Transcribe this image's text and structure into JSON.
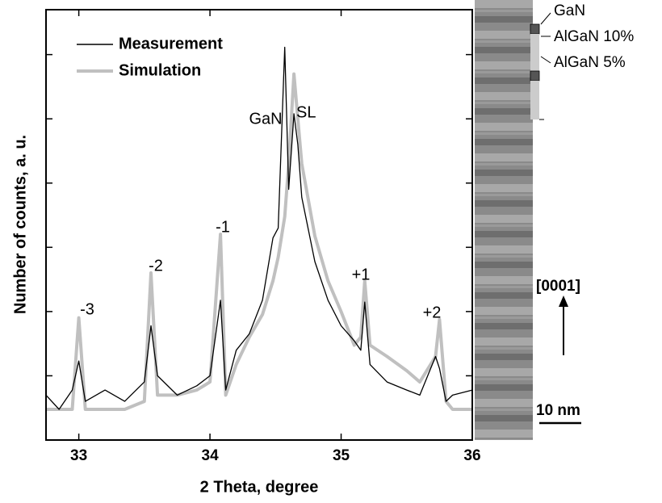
{
  "chart_data": {
    "type": "line",
    "x_label": "2 Theta, degree",
    "y_label": "Number of counts, a. u.",
    "x": [
      32.75,
      32.85,
      32.95,
      33.0,
      33.05,
      33.2,
      33.35,
      33.5,
      33.55,
      33.6,
      33.75,
      33.9,
      34.0,
      34.08,
      34.12,
      34.2,
      34.3,
      34.4,
      34.48,
      34.52,
      34.57,
      34.6,
      34.64,
      34.67,
      34.7,
      34.8,
      34.9,
      35.0,
      35.1,
      35.15,
      35.18,
      35.22,
      35.35,
      35.5,
      35.6,
      35.72,
      35.75,
      35.8,
      35.85,
      36.0
    ],
    "series": [
      {
        "name": "Simulation",
        "color": "#c0c0c0",
        "values": [
          3,
          3,
          3,
          80,
          3,
          3,
          3,
          4,
          400,
          5,
          5,
          6,
          8,
          1600,
          5,
          15,
          40,
          90,
          300,
          700,
          3000,
          20000,
          500000,
          100000,
          20000,
          1500,
          300,
          100,
          30,
          40,
          300,
          30,
          20,
          12,
          8,
          20,
          75,
          4,
          3,
          3
        ]
      },
      {
        "name": "Measurement",
        "color": "#000000",
        "values": [
          5,
          3,
          6,
          17,
          4,
          6,
          4,
          8,
          60,
          10,
          5,
          7,
          10,
          150,
          6,
          25,
          45,
          150,
          1400,
          2000,
          1300000,
          8000,
          120000,
          40000,
          6000,
          600,
          150,
          60,
          35,
          25,
          140,
          15,
          8,
          6,
          5,
          20,
          13,
          4,
          5,
          6
        ]
      }
    ],
    "xlim": [
      32.75,
      36
    ],
    "xticks": [
      33,
      34,
      35,
      36
    ],
    "ylim": [
      1,
      5000000
    ],
    "yticks": [
      10,
      100,
      1000,
      10000,
      100000,
      1000000
    ],
    "log_y": true,
    "annotations": [
      "GaN",
      "SL",
      "-3",
      "-2",
      "-1",
      "+1",
      "+2"
    ]
  },
  "tem_image": {
    "layers": [
      "GaN",
      "AlGaN 10%",
      "AlGaN 5%"
    ],
    "direction": "[0001]",
    "scale_bar": "10 nm"
  }
}
